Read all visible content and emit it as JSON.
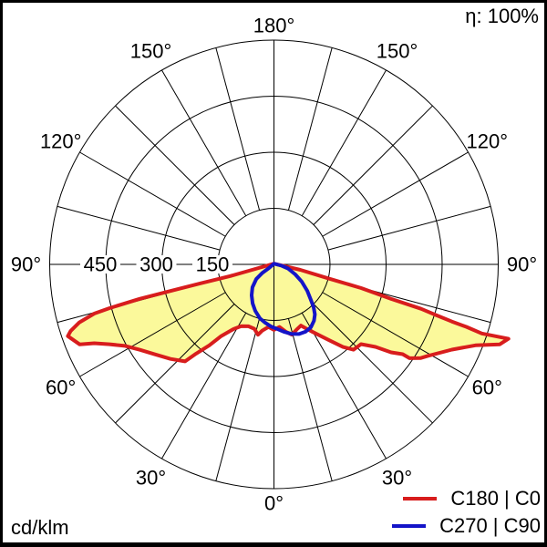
{
  "header": {
    "efficiency": "η: 100%"
  },
  "footer": {
    "units": "cd/klm"
  },
  "chart_data": {
    "type": "polar_intensity_distribution",
    "units": "cd/klm",
    "efficiency_percent": 100,
    "gamma_convention": "0=down(nadir), negative=left half-plane, positive=right half-plane, ±180=up",
    "angle_tick_step_deg": 15,
    "radial_axis": {
      "tick_values": [
        450,
        300,
        150
      ],
      "tick_labels": [
        "450",
        "300",
        "150"
      ],
      "max": 600
    },
    "angle_labels": [
      {
        "gamma": 0,
        "label": "0°"
      },
      {
        "gamma": 30,
        "label": "30°"
      },
      {
        "gamma": 60,
        "label": "60°"
      },
      {
        "gamma": 90,
        "label": "90°"
      },
      {
        "gamma": 120,
        "label": "120°"
      },
      {
        "gamma": 150,
        "label": "150°"
      },
      {
        "gamma": 180,
        "label": "180°"
      }
    ],
    "colors": {
      "grid": "#000000",
      "background": "#ffffff",
      "fill_c0": "#fbf99b",
      "stroke_c0": "#d81d1d",
      "stroke_c90": "#1414c8"
    },
    "series": [
      {
        "name": "C180 | C0",
        "color": "#d81d1d",
        "fill": "#fbf99b",
        "points_gamma_deg_value_cd_per_klm": [
          [
            -180,
            2
          ],
          [
            -76,
            60
          ],
          [
            -75,
            121
          ],
          [
            -75.5,
            203
          ],
          [
            -75.6,
            286
          ],
          [
            -75.6,
            371
          ],
          [
            -75.1,
            455
          ],
          [
            -74.7,
            498
          ],
          [
            -73.4,
            543
          ],
          [
            -71.9,
            572
          ],
          [
            -70.8,
            584
          ],
          [
            -67.6,
            562
          ],
          [
            -66.3,
            525
          ],
          [
            -64.1,
            489
          ],
          [
            -61.3,
            454
          ],
          [
            -57.6,
            426
          ],
          [
            -52.9,
            399
          ],
          [
            -47.6,
            375
          ],
          [
            -42.5,
            352
          ],
          [
            -41.1,
            317
          ],
          [
            -38.6,
            277
          ],
          [
            -36.3,
            238
          ],
          [
            -31.8,
            203
          ],
          [
            -27.9,
            187
          ],
          [
            -22.4,
            179
          ],
          [
            -17,
            180
          ],
          [
            -12.8,
            193
          ],
          [
            -10.1,
            180
          ],
          [
            -5,
            168
          ],
          [
            0,
            175
          ],
          [
            5,
            168
          ],
          [
            10,
            183
          ],
          [
            14.2,
            194
          ],
          [
            19,
            185
          ],
          [
            23.8,
            179
          ],
          [
            26.9,
            193
          ],
          [
            29.6,
            207
          ],
          [
            33.3,
            230
          ],
          [
            36.4,
            254
          ],
          [
            39.9,
            288
          ],
          [
            43,
            312
          ],
          [
            47.5,
            316
          ],
          [
            50.9,
            350
          ],
          [
            53.1,
            392
          ],
          [
            55.1,
            420
          ],
          [
            55.3,
            441
          ],
          [
            57.5,
            466
          ],
          [
            59.1,
            478
          ],
          [
            64.4,
            528
          ],
          [
            68.1,
            581
          ],
          [
            70.5,
            641
          ],
          [
            72.4,
            658
          ],
          [
            71.6,
            586
          ],
          [
            72,
            541
          ],
          [
            72.2,
            500
          ],
          [
            72.6,
            456
          ],
          [
            73.2,
            411
          ],
          [
            73.6,
            327
          ],
          [
            74.8,
            242
          ],
          [
            75.5,
            155
          ],
          [
            78.3,
            72
          ],
          [
            180,
            2
          ]
        ]
      },
      {
        "name": "C270 | C90",
        "color": "#1414c8",
        "fill": null,
        "points_gamma_deg_value_cd_per_klm": [
          [
            -180,
            2
          ],
          [
            -54,
            17
          ],
          [
            -54,
            38
          ],
          [
            -50.6,
            61
          ],
          [
            -43.2,
            84
          ],
          [
            -35.8,
            102
          ],
          [
            -28.7,
            119
          ],
          [
            -21.9,
            134
          ],
          [
            -14.7,
            149
          ],
          [
            -8.4,
            158
          ],
          [
            -2.9,
            166
          ],
          [
            2.8,
            173
          ],
          [
            8.8,
            183
          ],
          [
            14.3,
            192
          ],
          [
            19.8,
            198
          ],
          [
            25,
            199
          ],
          [
            30.4,
            195
          ],
          [
            35.4,
            185
          ],
          [
            39.3,
            173
          ],
          [
            42.8,
            156
          ],
          [
            46.1,
            137
          ],
          [
            51.5,
            114
          ],
          [
            58.1,
            88
          ],
          [
            64.9,
            63
          ],
          [
            73.8,
            39
          ],
          [
            80,
            21
          ],
          [
            180,
            2
          ]
        ]
      }
    ]
  }
}
